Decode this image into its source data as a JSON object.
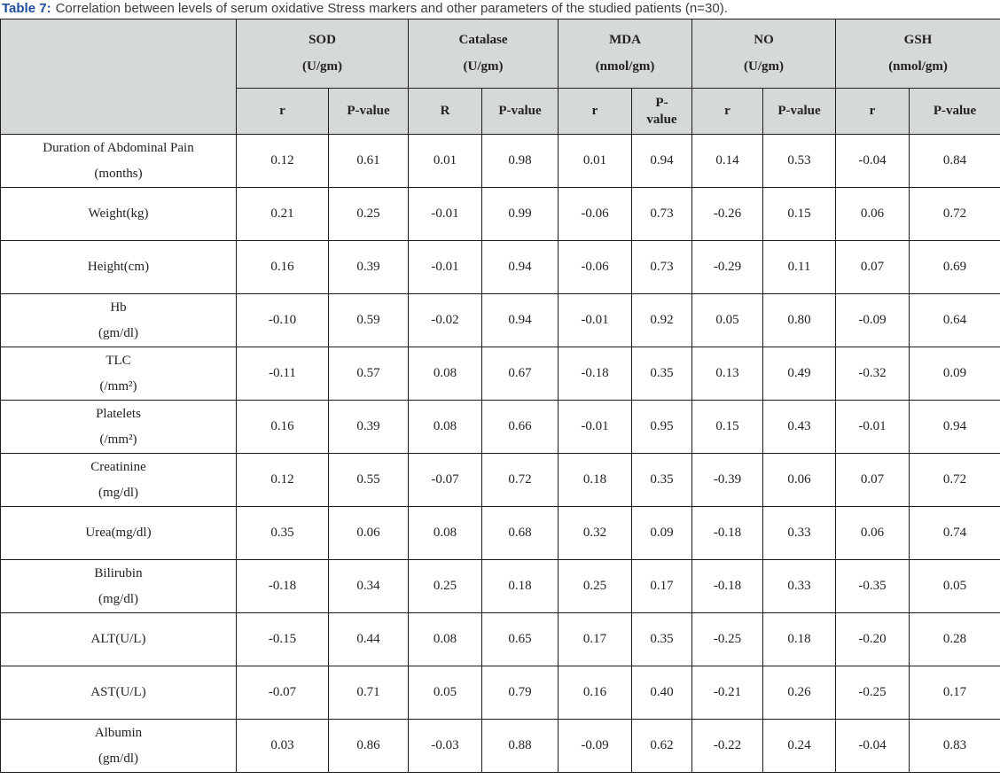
{
  "title": {
    "prefix": "Table 7:",
    "text": "Correlation between levels of serum oxidative Stress markers and other parameters of the studied patients (n=30)."
  },
  "colors": {
    "caption_prefix_blue": "#1e4e9b",
    "caption_text_gray": "#3d3d3d",
    "header_background": "#d5d9d8",
    "grid_border": "#1c1c1c",
    "table_text": "#222222",
    "body_background": "#ffffff"
  },
  "chart_data": {
    "type": "table",
    "corner_label": "",
    "groups": [
      {
        "name": "SOD",
        "unit": "(U/gm)",
        "r_label": "r",
        "p_label": "P-value"
      },
      {
        "name": "Catalase",
        "unit": "(U/gm)",
        "r_label": "R",
        "p_label": "P-value"
      },
      {
        "name": "MDA",
        "unit": "(nmol/gm)",
        "r_label": "r",
        "p_label": "P-value"
      },
      {
        "name": "NO",
        "unit": "(U/gm)",
        "r_label": "r",
        "p_label": "P-value"
      },
      {
        "name": "GSH",
        "unit": "(nmol/gm)",
        "r_label": "r",
        "p_label": "P-value"
      }
    ],
    "rows": [
      {
        "label": [
          "Duration of Abdominal Pain",
          "(months)"
        ],
        "values": [
          "0.12",
          "0.61",
          "0.01",
          "0.98",
          "0.01",
          "0.94",
          "0.14",
          "0.53",
          "-0.04",
          "0.84"
        ]
      },
      {
        "label": [
          "Weight(kg)"
        ],
        "values": [
          "0.21",
          "0.25",
          "-0.01",
          "0.99",
          "-0.06",
          "0.73",
          "-0.26",
          "0.15",
          "0.06",
          "0.72"
        ]
      },
      {
        "label": [
          "Height(cm)"
        ],
        "values": [
          "0.16",
          "0.39",
          "-0.01",
          "0.94",
          "-0.06",
          "0.73",
          "-0.29",
          "0.11",
          "0.07",
          "0.69"
        ]
      },
      {
        "label": [
          "Hb",
          "(gm/dl)"
        ],
        "values": [
          "-0.10",
          "0.59",
          "-0.02",
          "0.94",
          "-0.01",
          "0.92",
          "0.05",
          "0.80",
          "-0.09",
          "0.64"
        ]
      },
      {
        "label": [
          "TLC",
          "(/mm²)"
        ],
        "values": [
          "-0.11",
          "0.57",
          "0.08",
          "0.67",
          "-0.18",
          "0.35",
          "0.13",
          "0.49",
          "-0.32",
          "0.09"
        ]
      },
      {
        "label": [
          "Platelets",
          "(/mm²)"
        ],
        "values": [
          "0.16",
          "0.39",
          "0.08",
          "0.66",
          "-0.01",
          "0.95",
          "0.15",
          "0.43",
          "-0.01",
          "0.94"
        ]
      },
      {
        "label": [
          "Creatinine",
          "(mg/dl)"
        ],
        "values": [
          "0.12",
          "0.55",
          "-0.07",
          "0.72",
          "0.18",
          "0.35",
          "-0.39",
          "0.06",
          "0.07",
          "0.72"
        ]
      },
      {
        "label": [
          "Urea(mg/dl)"
        ],
        "values": [
          "0.35",
          "0.06",
          "0.08",
          "0.68",
          "0.32",
          "0.09",
          "-0.18",
          "0.33",
          "0.06",
          "0.74"
        ]
      },
      {
        "label": [
          "Bilirubin",
          "(mg/dl)"
        ],
        "values": [
          "-0.18",
          "0.34",
          "0.25",
          "0.18",
          "0.25",
          "0.17",
          "-0.18",
          "0.33",
          "-0.35",
          "0.05"
        ]
      },
      {
        "label": [
          "ALT(U/L)"
        ],
        "values": [
          "-0.15",
          "0.44",
          "0.08",
          "0.65",
          "0.17",
          "0.35",
          "-0.25",
          "0.18",
          "-0.20",
          "0.28"
        ]
      },
      {
        "label": [
          "AST(U/L)"
        ],
        "values": [
          "-0.07",
          "0.71",
          "0.05",
          "0.79",
          "0.16",
          "0.40",
          "-0.21",
          "0.26",
          "-0.25",
          "0.17"
        ]
      },
      {
        "label": [
          "Albumin",
          "(gm/dl)"
        ],
        "values": [
          "0.03",
          "0.86",
          "-0.03",
          "0.88",
          "-0.09",
          "0.62",
          "-0.22",
          "0.24",
          "-0.04",
          "0.83"
        ]
      }
    ]
  }
}
